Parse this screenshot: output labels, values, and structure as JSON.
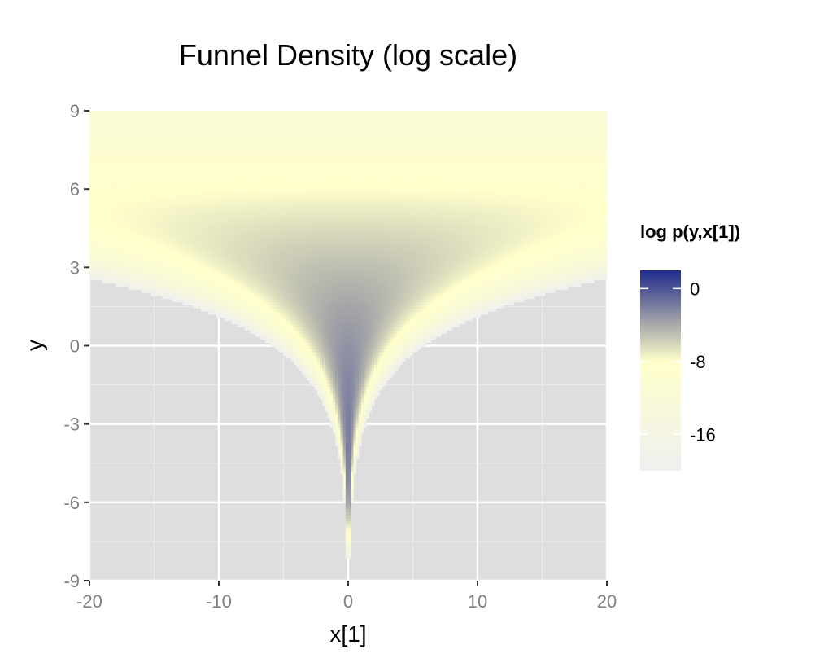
{
  "chart_data": {
    "type": "heatmap",
    "title": "Funnel Density (log scale)",
    "xlabel": "x[1]",
    "ylabel": "y",
    "xlim": [
      -20,
      20
    ],
    "ylim": [
      -9,
      9
    ],
    "x_ticks": [
      -20,
      -10,
      0,
      10,
      20
    ],
    "x_tick_labels": [
      "-20",
      "-10",
      "0",
      "10",
      "20"
    ],
    "y_ticks": [
      -9,
      -6,
      -3,
      0,
      3,
      6,
      9
    ],
    "y_tick_labels": [
      "-9",
      "-6",
      "-3",
      "0",
      "3",
      "6",
      "9"
    ],
    "grid": true,
    "panel_background": "#dedede",
    "legend": {
      "title": "log p(y,x[1])",
      "position": "right",
      "breaks": [
        0,
        -8,
        -16
      ],
      "break_labels": [
        "0",
        "-8",
        "-16"
      ],
      "range": [
        -20,
        2
      ],
      "color_stops": [
        {
          "value": 2,
          "color": "#1f2b8c"
        },
        {
          "value": -4,
          "color": "#a9a9a9"
        },
        {
          "value": -8,
          "color": "#ffffcc"
        },
        {
          "value": -20,
          "color": "#efefef"
        }
      ]
    },
    "density": "funnel: y ~ N(0,3), x[1] ~ N(0, exp(y/2)); log p = -y^2/18 - x^2/(2 exp(y)) - y/2 - log(6π)"
  }
}
